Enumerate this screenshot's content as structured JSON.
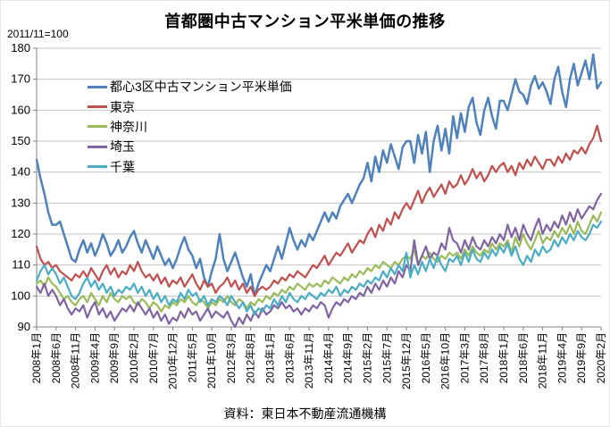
{
  "title": "首都圏中古マンション平米単価の推移",
  "index_note": "2011/11=100",
  "source": "資料：東日本不動産流通機構",
  "chart_data": {
    "type": "line",
    "title": "首都圏中古マンション平米単価の推移",
    "subtitle": "2011/11=100",
    "xlabel": "",
    "ylabel": "",
    "ylim": [
      90,
      180
    ],
    "y_ticks": [
      90,
      100,
      110,
      120,
      130,
      140,
      150,
      160,
      170,
      180
    ],
    "grid": true,
    "legend_position": "inside-top-left",
    "x_months_start": "2008年1月",
    "x_months_end": "2020年2月",
    "x_tick_every_months": 5,
    "x_tick_labels": [
      "2008年1月",
      "2008年6月",
      "2008年11月",
      "2009年4月",
      "2009年9月",
      "2010年2月",
      "2010年7月",
      "2010年12月",
      "2011年5月",
      "2011年10月",
      "2012年3月",
      "2012年8月",
      "2013年1月",
      "2013年6月",
      "2013年11月",
      "2014年4月",
      "2014年9月",
      "2015年2月",
      "2015年7月",
      "2015年12月",
      "2016年5月",
      "2016年10月",
      "2017年3月",
      "2017年8月",
      "2018年1月",
      "2018年6月",
      "2018年11月",
      "2019年4月",
      "2019年9月",
      "2020年2月"
    ],
    "axis_color": "#808080",
    "grid_color": "#c6c6c6",
    "series": [
      {
        "name": "都心3区中古マンション平米単価",
        "color": "#4F81BD",
        "values": [
          144,
          138,
          133,
          127,
          123,
          123,
          124,
          120,
          116,
          112,
          111,
          115,
          118,
          114,
          117,
          113,
          116,
          120,
          117,
          113,
          115,
          118,
          114,
          116,
          119,
          121,
          117,
          114,
          118,
          115,
          112,
          116,
          113,
          110,
          112,
          109,
          112,
          116,
          119,
          115,
          113,
          109,
          112,
          106,
          103,
          108,
          112,
          120,
          112,
          108,
          111,
          114,
          110,
          106,
          103,
          107,
          100,
          104,
          107,
          110,
          108,
          112,
          116,
          112,
          117,
          122,
          118,
          115,
          118,
          116,
          120,
          118,
          121,
          124,
          127,
          124,
          127,
          125,
          129,
          131,
          133,
          130,
          133,
          136,
          138,
          143,
          137,
          145,
          140,
          147,
          143,
          149,
          145,
          141,
          148,
          150,
          150,
          143,
          152,
          146,
          153,
          140,
          150,
          155,
          147,
          154,
          146,
          158,
          151,
          159,
          153,
          161,
          164,
          156,
          152,
          160,
          164,
          158,
          154,
          163,
          163,
          160,
          165,
          170,
          166,
          165,
          162,
          168,
          171,
          167,
          169,
          166,
          162,
          170,
          174,
          166,
          161,
          170,
          175,
          168,
          172,
          176,
          170,
          178,
          167,
          169
        ]
      },
      {
        "name": "東京",
        "color": "#C0504D",
        "values": [
          116,
          112,
          110,
          111,
          109,
          110,
          108,
          107,
          106,
          105,
          107,
          106,
          108,
          106,
          109,
          107,
          105,
          108,
          110,
          107,
          109,
          106,
          108,
          107,
          110,
          108,
          111,
          108,
          106,
          107,
          105,
          107,
          104,
          106,
          103,
          105,
          104,
          106,
          103,
          105,
          107,
          104,
          102,
          105,
          103,
          104,
          101,
          103,
          104,
          106,
          103,
          105,
          102,
          104,
          101,
          103,
          100,
          102,
          103,
          102,
          103,
          105,
          104,
          106,
          105,
          107,
          106,
          108,
          107,
          106,
          108,
          110,
          109,
          111,
          113,
          110,
          112,
          114,
          113,
          115,
          117,
          114,
          116,
          118,
          117,
          120,
          122,
          119,
          123,
          121,
          125,
          123,
          127,
          125,
          128,
          130,
          128,
          131,
          134,
          130,
          133,
          135,
          132,
          134,
          136,
          133,
          137,
          135,
          136,
          139,
          136,
          138,
          141,
          138,
          140,
          137,
          139,
          142,
          140,
          142,
          143,
          140,
          142,
          139,
          143,
          141,
          144,
          142,
          145,
          143,
          141,
          144,
          144,
          142,
          145,
          143,
          146,
          144,
          147,
          146,
          148,
          146,
          149,
          151,
          155,
          150
        ]
      },
      {
        "name": "神奈川",
        "color": "#9BBB59",
        "values": [
          104,
          105,
          103,
          106,
          104,
          103,
          101,
          99,
          100,
          98,
          97,
          99,
          100,
          98,
          101,
          99,
          97,
          100,
          98,
          101,
          99,
          98,
          100,
          99,
          100,
          98,
          97,
          99,
          98,
          96,
          98,
          97,
          95,
          97,
          96,
          98,
          97,
          99,
          98,
          100,
          98,
          97,
          99,
          98,
          96,
          98,
          97,
          99,
          98,
          100,
          98,
          97,
          99,
          98,
          96,
          98,
          97,
          99,
          98,
          100,
          99,
          101,
          100,
          102,
          101,
          103,
          102,
          104,
          103,
          102,
          104,
          103,
          104,
          103,
          105,
          104,
          106,
          105,
          104,
          106,
          105,
          107,
          106,
          108,
          107,
          109,
          108,
          110,
          109,
          111,
          110,
          109,
          111,
          110,
          112,
          113,
          112,
          115,
          110,
          113,
          112,
          114,
          112,
          111,
          113,
          112,
          114,
          113,
          114,
          112,
          115,
          113,
          116,
          114,
          113,
          115,
          114,
          117,
          115,
          117,
          116,
          118,
          114,
          119,
          116,
          120,
          117,
          115,
          118,
          121,
          117,
          119,
          118,
          121,
          119,
          122,
          120,
          123,
          120,
          124,
          121,
          120,
          123,
          126,
          124,
          127
        ]
      },
      {
        "name": "埼玉",
        "color": "#8064A2",
        "values": [
          103,
          101,
          104,
          100,
          102,
          100,
          97,
          99,
          96,
          94,
          96,
          95,
          97,
          93,
          96,
          98,
          94,
          96,
          93,
          95,
          92,
          94,
          96,
          95,
          97,
          95,
          98,
          96,
          94,
          96,
          93,
          95,
          92,
          94,
          91,
          93,
          92,
          95,
          93,
          96,
          94,
          95,
          92,
          94,
          96,
          93,
          95,
          94,
          93,
          95,
          92,
          90,
          93,
          91,
          94,
          92,
          95,
          93,
          96,
          94,
          95,
          97,
          96,
          98,
          96,
          97,
          95,
          96,
          94,
          96,
          95,
          97,
          96,
          98,
          97,
          93,
          96,
          98,
          97,
          99,
          98,
          100,
          99,
          101,
          100,
          103,
          101,
          104,
          102,
          105,
          103,
          106,
          104,
          108,
          106,
          110,
          108,
          118,
          110,
          113,
          116,
          112,
          114,
          113,
          117,
          115,
          122,
          118,
          117,
          114,
          118,
          115,
          119,
          116,
          115,
          118,
          116,
          119,
          117,
          120,
          118,
          123,
          119,
          122,
          118,
          123,
          120,
          118,
          122,
          125,
          120,
          123,
          121,
          124,
          122,
          126,
          123,
          127,
          124,
          128,
          125,
          127,
          129,
          128,
          131,
          133
        ]
      },
      {
        "name": "千葉",
        "color": "#4BACC6",
        "values": [
          105,
          108,
          110,
          107,
          109,
          107,
          104,
          106,
          103,
          100,
          99,
          101,
          104,
          106,
          103,
          105,
          102,
          104,
          101,
          103,
          100,
          102,
          101,
          103,
          102,
          104,
          101,
          103,
          100,
          102,
          99,
          101,
          98,
          100,
          97,
          99,
          98,
          101,
          99,
          102,
          100,
          101,
          98,
          100,
          97,
          99,
          98,
          100,
          99,
          97,
          100,
          98,
          96,
          98,
          95,
          97,
          94,
          96,
          95,
          97,
          96,
          99,
          97,
          100,
          98,
          101,
          99,
          98,
          100,
          99,
          101,
          100,
          99,
          101,
          100,
          102,
          101,
          103,
          100,
          102,
          101,
          103,
          102,
          104,
          103,
          105,
          104,
          106,
          105,
          108,
          106,
          109,
          107,
          110,
          108,
          114,
          106,
          110,
          107,
          111,
          108,
          112,
          109,
          113,
          110,
          108,
          112,
          111,
          113,
          110,
          114,
          111,
          115,
          112,
          111,
          114,
          112,
          115,
          113,
          116,
          114,
          117,
          113,
          116,
          112,
          110,
          113,
          111,
          115,
          113,
          116,
          114,
          115,
          118,
          116,
          119,
          117,
          120,
          118,
          121,
          119,
          118,
          120,
          123,
          122,
          124
        ]
      }
    ]
  }
}
